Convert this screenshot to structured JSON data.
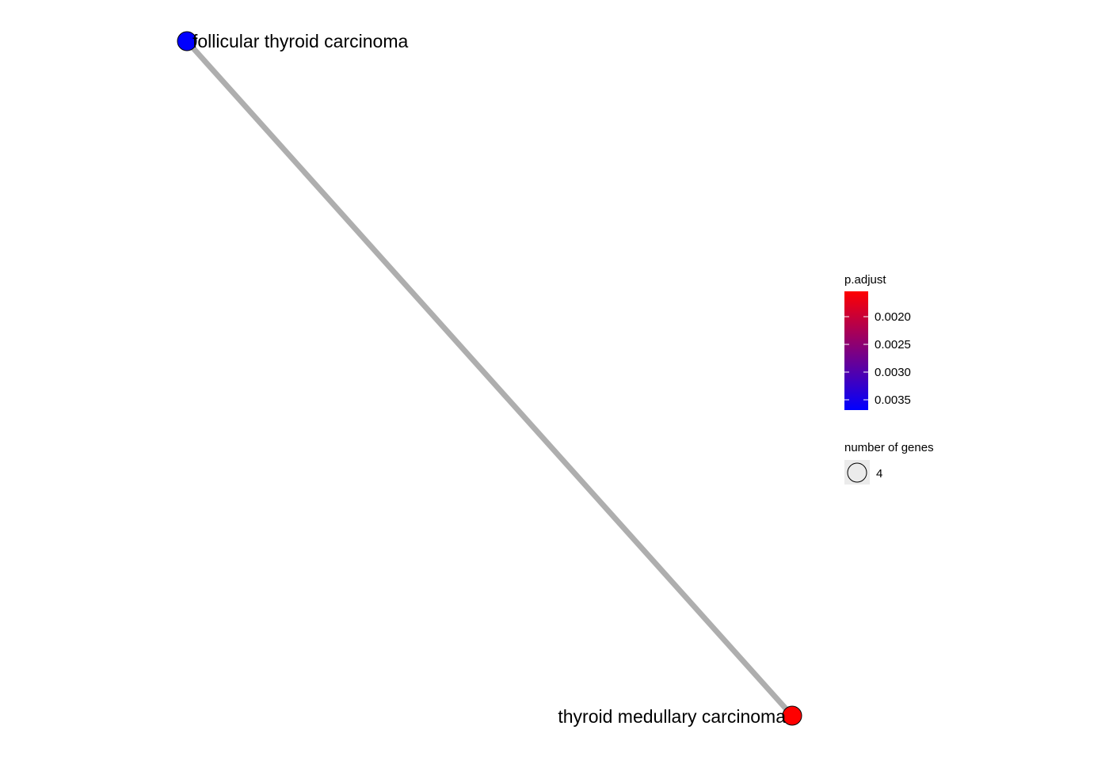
{
  "network": {
    "nodes": [
      {
        "id": "follicular",
        "label": "follicular thyroid carcinoma",
        "color": "#0000FF",
        "genes": 4
      },
      {
        "id": "medullary",
        "label": "thyroid medullary carcinoma",
        "color": "#FF0000",
        "genes": 4
      }
    ],
    "edges": [
      {
        "source": "follicular",
        "target": "medullary",
        "color": "#AEAEAE"
      }
    ]
  },
  "legend": {
    "color": {
      "title": "p.adjust",
      "high_color": "#FF0000",
      "low_color": "#0000FF",
      "ticks": [
        "0.0020",
        "0.0025",
        "0.0030",
        "0.0035"
      ]
    },
    "size": {
      "title": "number of genes",
      "value": "4"
    }
  }
}
